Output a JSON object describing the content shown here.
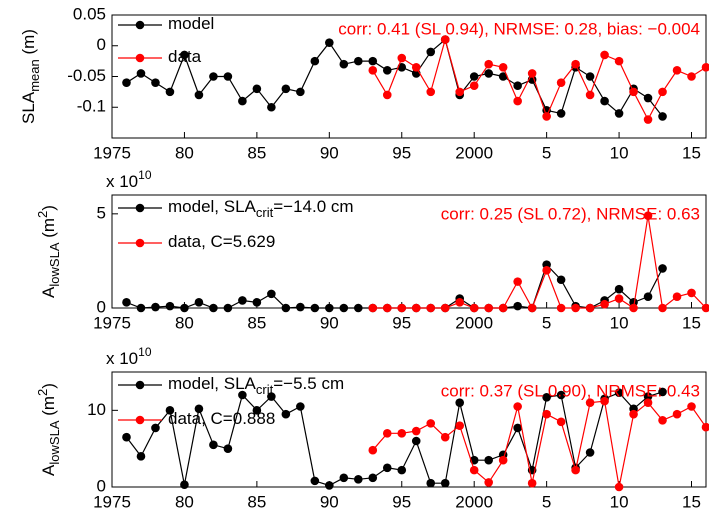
{
  "chart_data": [
    {
      "type": "line",
      "annotation": "corr: 0.41 (SL 0.94), NRMSE: 0.28, bias: −0.004",
      "ylabel": {
        "main": "SLA",
        "sub": "mean",
        "unit": " (m)"
      },
      "xlim": [
        1975,
        2016
      ],
      "ylim": [
        -0.15,
        0.05
      ],
      "xticks": [
        1975,
        {
          "value": 1980,
          "label": "80"
        },
        {
          "value": 1985,
          "label": "85"
        },
        {
          "value": 1990,
          "label": "90"
        },
        {
          "value": 1995,
          "label": "95"
        },
        2000,
        {
          "value": 2005,
          "label": "5"
        },
        {
          "value": 2010,
          "label": "10"
        },
        {
          "value": 2015,
          "label": "15"
        }
      ],
      "yticks": [
        -0.1,
        -0.05,
        0,
        0.05
      ],
      "x": [
        1976,
        1977,
        1978,
        1979,
        1980,
        1981,
        1982,
        1983,
        1984,
        1985,
        1986,
        1987,
        1988,
        1989,
        1990,
        1991,
        1992,
        1993,
        1994,
        1995,
        1996,
        1997,
        1998,
        1999,
        2000,
        2001,
        2002,
        2003,
        2004,
        2005,
        2006,
        2007,
        2008,
        2009,
        2010,
        2011,
        2012,
        2013,
        2014,
        2015,
        2016
      ],
      "series": [
        {
          "name": "model",
          "color": "#000000",
          "values": [
            -0.06,
            -0.045,
            -0.06,
            -0.075,
            -0.015,
            -0.08,
            -0.05,
            -0.05,
            -0.09,
            -0.07,
            -0.1,
            -0.07,
            -0.075,
            -0.025,
            0.005,
            -0.03,
            -0.025,
            -0.025,
            -0.04,
            -0.035,
            -0.045,
            -0.01,
            0.01,
            -0.08,
            -0.05,
            -0.045,
            -0.05,
            -0.065,
            -0.055,
            -0.105,
            -0.11,
            -0.035,
            -0.05,
            -0.09,
            -0.11,
            -0.07,
            -0.085,
            -0.115,
            null,
            null,
            null
          ]
        },
        {
          "name": "data",
          "color": "#ff0000",
          "values": [
            null,
            null,
            null,
            null,
            null,
            null,
            null,
            null,
            null,
            null,
            null,
            null,
            null,
            null,
            null,
            null,
            null,
            -0.04,
            -0.08,
            -0.02,
            -0.035,
            -0.075,
            0.01,
            -0.075,
            -0.065,
            -0.03,
            -0.035,
            -0.09,
            -0.045,
            -0.115,
            -0.06,
            -0.03,
            -0.08,
            -0.015,
            -0.025,
            -0.075,
            -0.12,
            -0.075,
            -0.04,
            -0.05,
            -0.035
          ]
        }
      ]
    },
    {
      "type": "line",
      "annotation": "corr: 0.25 (SL 0.72), NRMSE: 0.63",
      "exponent": {
        "base": "x 10",
        "power": "10"
      },
      "ylabel": {
        "main": "A",
        "sub": "lowSLA",
        "unit": " (m",
        "sup": "2",
        "close": ")"
      },
      "xlim": [
        1975,
        2016
      ],
      "ylim": [
        0,
        6
      ],
      "xticks": [
        1975,
        {
          "value": 1980,
          "label": "80"
        },
        {
          "value": 1985,
          "label": "85"
        },
        {
          "value": 1990,
          "label": "90"
        },
        {
          "value": 1995,
          "label": "95"
        },
        2000,
        {
          "value": 2005,
          "label": "5"
        },
        {
          "value": 2010,
          "label": "10"
        },
        {
          "value": 2015,
          "label": "15"
        }
      ],
      "yticks": [
        0,
        5
      ],
      "x": [
        1976,
        1977,
        1978,
        1979,
        1980,
        1981,
        1982,
        1983,
        1984,
        1985,
        1986,
        1987,
        1988,
        1989,
        1990,
        1991,
        1992,
        1993,
        1994,
        1995,
        1996,
        1997,
        1998,
        1999,
        2000,
        2001,
        2002,
        2003,
        2004,
        2005,
        2006,
        2007,
        2008,
        2009,
        2010,
        2011,
        2012,
        2013,
        2014,
        2015,
        2016
      ],
      "series": [
        {
          "name": "model, SLA",
          "name_sub": "crit",
          "name_end": "=−14.0 cm",
          "color": "#000000",
          "values": [
            0.3,
            0,
            0.05,
            0.1,
            0,
            0.3,
            0,
            0,
            0.4,
            0.3,
            0.75,
            0,
            0.05,
            0,
            0,
            0,
            0,
            0,
            0,
            0,
            0,
            0,
            0,
            0.5,
            0,
            0,
            0,
            0.1,
            0,
            2.3,
            1.5,
            0.1,
            0,
            0.4,
            1.0,
            0.3,
            0.6,
            2.1,
            null,
            null,
            null
          ]
        },
        {
          "name": "data, C=5.629",
          "color": "#ff0000",
          "values": [
            null,
            null,
            null,
            null,
            null,
            null,
            null,
            null,
            null,
            null,
            null,
            null,
            null,
            null,
            null,
            null,
            null,
            0,
            0,
            0,
            0,
            0,
            0,
            0.3,
            0,
            0,
            0,
            1.4,
            0,
            2.0,
            0,
            0,
            0,
            0.2,
            0.5,
            0,
            4.9,
            0,
            0.6,
            0.8,
            0
          ]
        }
      ]
    },
    {
      "type": "line",
      "annotation": "corr: 0.37 (SL 0.90), NRMSE: 0.43",
      "exponent": {
        "base": "x 10",
        "power": "10"
      },
      "ylabel": {
        "main": "A",
        "sub": "lowSLA",
        "unit": " (m",
        "sup": "2",
        "close": ")"
      },
      "xlim": [
        1975,
        2016
      ],
      "ylim": [
        0,
        15
      ],
      "xticks": [
        1975,
        {
          "value": 1980,
          "label": "80"
        },
        {
          "value": 1985,
          "label": "85"
        },
        {
          "value": 1990,
          "label": "90"
        },
        {
          "value": 1995,
          "label": "95"
        },
        2000,
        {
          "value": 2005,
          "label": "5"
        },
        {
          "value": 2010,
          "label": "10"
        },
        {
          "value": 2015,
          "label": "15"
        }
      ],
      "yticks": [
        0,
        10
      ],
      "x": [
        1976,
        1977,
        1978,
        1979,
        1980,
        1981,
        1982,
        1983,
        1984,
        1985,
        1986,
        1987,
        1988,
        1989,
        1990,
        1991,
        1992,
        1993,
        1994,
        1995,
        1996,
        1997,
        1998,
        1999,
        2000,
        2001,
        2002,
        2003,
        2004,
        2005,
        2006,
        2007,
        2008,
        2009,
        2010,
        2011,
        2012,
        2013,
        2014,
        2015,
        2016
      ],
      "series": [
        {
          "name": "model, SLA",
          "name_sub": "crit",
          "name_end": "=−5.5 cm",
          "color": "#000000",
          "values": [
            6.5,
            4,
            7.7,
            10,
            0.3,
            10.2,
            5.5,
            5,
            12,
            10,
            11.8,
            9.5,
            10.5,
            0.8,
            0.2,
            1.2,
            1,
            1.2,
            2.5,
            2.2,
            6,
            0.5,
            0.5,
            11,
            3.5,
            3.5,
            4.2,
            7.7,
            2.2,
            11.7,
            12,
            2.5,
            4.5,
            11.5,
            12.3,
            10.2,
            11.8,
            12.4,
            null,
            null,
            null
          ]
        },
        {
          "name": "data, C=0.888",
          "color": "#ff0000",
          "values": [
            null,
            null,
            null,
            null,
            null,
            null,
            null,
            null,
            null,
            null,
            null,
            null,
            null,
            null,
            null,
            null,
            null,
            4.8,
            7,
            7,
            7.3,
            8.3,
            6.5,
            8,
            2.2,
            0.6,
            3.5,
            10.5,
            0.5,
            9.5,
            8.5,
            2.2,
            11,
            11.2,
            0,
            9.5,
            11,
            8.7,
            9.5,
            10.5,
            7.8
          ]
        }
      ]
    }
  ]
}
